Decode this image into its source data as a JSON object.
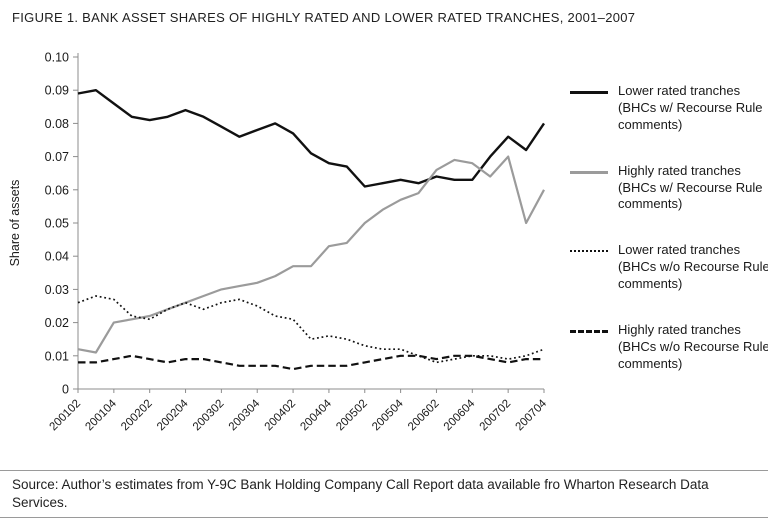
{
  "figure": {
    "title": "FIGURE 1. BANK ASSET SHARES OF HIGHLY RATED AND LOWER RATED TRANCHES, 2001–2007",
    "source": "Source: Author’s estimates from Y-9C Bank Holding Company Call Report data available fro Wharton Research Data Services."
  },
  "colors": {
    "primary_line": "#111111",
    "secondary_line": "#9b9b9b",
    "axis": "#8c8c8c",
    "text": "#1a1a1a"
  },
  "chart_data": {
    "type": "line",
    "title": "FIGURE 1. BANK ASSET SHARES OF HIGHLY RATED AND LOWER RATED TRANCHES, 2001–2007",
    "xlabel": "",
    "ylabel": "Share of assets",
    "ylim": [
      0,
      0.1
    ],
    "ytick_step": 0.01,
    "grid": false,
    "legend_position": "right",
    "x": [
      "200102",
      "200103",
      "200104",
      "200201",
      "200202",
      "200203",
      "200204",
      "200301",
      "200302",
      "200303",
      "200304",
      "200401",
      "200402",
      "200403",
      "200404",
      "200501",
      "200502",
      "200503",
      "200504",
      "200601",
      "200602",
      "200603",
      "200604",
      "200701",
      "200702",
      "200703",
      "200704"
    ],
    "x_labels": [
      "200102",
      "200104",
      "200202",
      "200204",
      "200302",
      "200304",
      "200402",
      "200404",
      "200502",
      "200504",
      "200602",
      "200604",
      "200702",
      "200704"
    ],
    "series": [
      {
        "name": "Lower rated tranches (BHCs w/ Recourse Rule comments)",
        "line_style": "solid",
        "color": "#111111",
        "width": 2.4,
        "values": [
          0.089,
          0.09,
          0.086,
          0.082,
          0.081,
          0.082,
          0.084,
          0.082,
          0.079,
          0.076,
          0.078,
          0.08,
          0.077,
          0.071,
          0.068,
          0.067,
          0.061,
          0.062,
          0.063,
          0.062,
          0.064,
          0.063,
          0.063,
          0.07,
          0.076,
          0.072,
          0.08
        ]
      },
      {
        "name": "Highly rated tranches (BHCs w/ Recourse Rule comments)",
        "line_style": "solid",
        "color": "#9b9b9b",
        "width": 2.2,
        "values": [
          0.012,
          0.011,
          0.02,
          0.021,
          0.022,
          0.024,
          0.026,
          0.028,
          0.03,
          0.031,
          0.032,
          0.034,
          0.037,
          0.037,
          0.043,
          0.044,
          0.05,
          0.054,
          0.057,
          0.059,
          0.066,
          0.069,
          0.068,
          0.064,
          0.07,
          0.05,
          0.06
        ]
      },
      {
        "name": "Lower rated tranches (BHCs w/o Recourse Rule comments)",
        "line_style": "dotted",
        "color": "#111111",
        "width": 1.7,
        "values": [
          0.026,
          0.028,
          0.027,
          0.022,
          0.021,
          0.024,
          0.026,
          0.024,
          0.026,
          0.027,
          0.025,
          0.022,
          0.021,
          0.015,
          0.016,
          0.015,
          0.013,
          0.012,
          0.012,
          0.01,
          0.008,
          0.009,
          0.01,
          0.01,
          0.009,
          0.01,
          0.012
        ]
      },
      {
        "name": "Highly rated tranches (BHCs w/o Recourse Rule comments)",
        "line_style": "dashed",
        "color": "#111111",
        "width": 2.2,
        "values": [
          0.008,
          0.008,
          0.009,
          0.01,
          0.009,
          0.008,
          0.009,
          0.009,
          0.008,
          0.007,
          0.007,
          0.007,
          0.006,
          0.007,
          0.007,
          0.007,
          0.008,
          0.009,
          0.01,
          0.01,
          0.009,
          0.01,
          0.01,
          0.009,
          0.008,
          0.009,
          0.009
        ]
      }
    ]
  }
}
